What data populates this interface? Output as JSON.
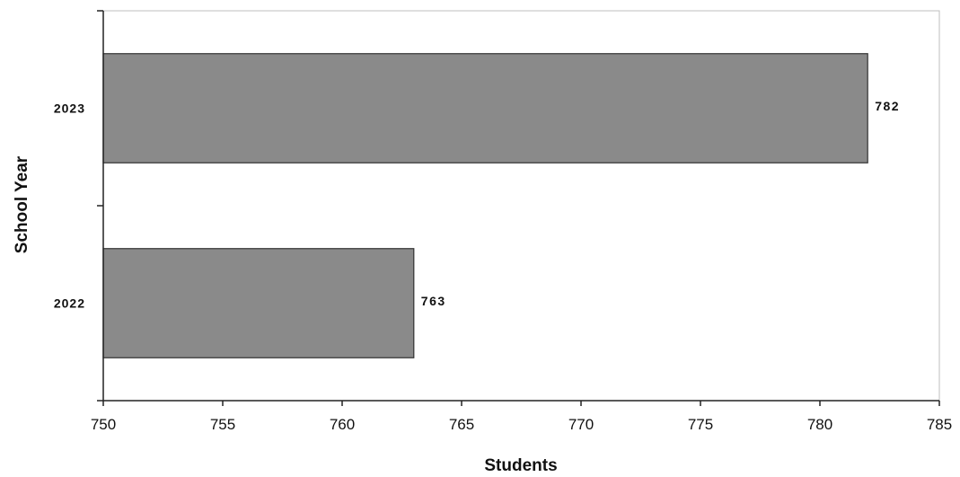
{
  "chart_data": {
    "type": "bar",
    "orientation": "horizontal",
    "categories": [
      "2022",
      "2023"
    ],
    "values": [
      763,
      782
    ],
    "data_labels": [
      "763",
      "782"
    ],
    "title": "",
    "xlabel": "Students",
    "ylabel": "School Year",
    "xlim": [
      750,
      785
    ],
    "x_ticks": [
      750,
      755,
      760,
      765,
      770,
      775,
      780,
      785
    ],
    "x_tick_labels": [
      "750",
      "755",
      "760",
      "765",
      "770",
      "775",
      "780",
      "785"
    ],
    "grid": false,
    "legend": "none",
    "colors": {
      "bar": "#8a8a8a",
      "bar_edge": "#333333",
      "axis": "#222222"
    }
  }
}
